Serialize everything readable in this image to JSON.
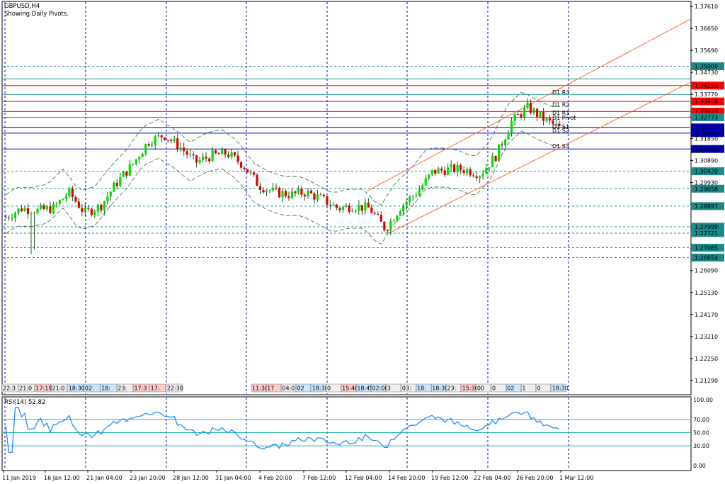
{
  "header": {
    "symbol": "GBPUSD,H4",
    "subtitle": "Showing Daily Pivots."
  },
  "rsi_panel": {
    "label": "RSI(14) 52.82",
    "levels": [
      "100.00",
      "70.00",
      "50.00",
      "30.00",
      "0.00"
    ]
  },
  "colors": {
    "bull_candle": "#00e000",
    "bear_candle": "#e00000",
    "wick": "#1a5a1a",
    "grid": "#0000cc",
    "rsi_line": "#1e90ff",
    "pivot_red": "#ff0000",
    "pivot_blue": "#0000b0",
    "hline_teal": "#1f8f8f",
    "channel": "#ff6a3a",
    "axis_label_bg": "#1a8a8a"
  },
  "chart_data": {
    "type": "candlestick",
    "symbol": "GBPUSD",
    "timeframe": "H4",
    "ylim": [
      1.2062,
      1.3797
    ],
    "y_ticks": [
      "1.37610",
      "1.36650",
      "1.35690",
      "1.34730",
      "1.33770",
      "1.32810",
      "1.31850",
      "1.30890",
      "1.29930",
      "1.28970",
      "1.28010",
      "1.27050",
      "1.26090",
      "1.25130",
      "1.24170",
      "1.23210",
      "1.22250",
      "1.21290"
    ],
    "x_ticks": [
      "11 Jan 2019",
      "16 Jan 12:00",
      "21 Jan 04:00",
      "23 Jan 20:00",
      "28 Jan 12:00",
      "31 Jan 04:00",
      "4 Feb 20:00",
      "7 Feb 12:00",
      "12 Feb 04:00",
      "14 Feb 20:00",
      "19 Feb 12:00",
      "22 Feb 04:00",
      "26 Feb 20:00",
      "1 Mar 12:00"
    ],
    "daily_pivots": [
      {
        "label": "D1 R3",
        "value": 1.34155
      },
      {
        "label": "D1 R2",
        "value": 1.33464
      },
      {
        "label": "D1 R1",
        "value": 1.33023
      },
      {
        "label": "D1 Pivot",
        "value": 1.32773
      },
      {
        "label": "D1 S1",
        "value": 1.32331
      },
      {
        "label": "D1 S2",
        "value": 1.32082
      },
      {
        "label": "D1 S3",
        "value": 1.31391
      }
    ],
    "price_labels": [
      {
        "text": "1.35000",
        "value": 1.35
      },
      {
        "text": "1.34155",
        "value": 1.34155
      },
      {
        "text": "1.33464",
        "value": 1.33464
      },
      {
        "text": "1.33023",
        "value": 1.33023
      },
      {
        "text": "1.32773",
        "value": 1.32773
      },
      {
        "text": "1.32331",
        "value": 1.32331
      },
      {
        "text": "1.32082",
        "value": 1.32082
      },
      {
        "text": "1.31391",
        "value": 1.31391
      },
      {
        "text": "1.30420",
        "value": 1.3042
      },
      {
        "text": "1.29658",
        "value": 1.29658
      },
      {
        "text": "1.28897",
        "value": 1.28897
      },
      {
        "text": "1.27999",
        "value": 1.27999
      },
      {
        "text": "1.27721",
        "value": 1.27721
      },
      {
        "text": "1.27085",
        "value": 1.27085
      },
      {
        "text": "1.26654",
        "value": 1.26654
      }
    ],
    "event_labels_left": [
      "22:3",
      "21:0",
      "17:19",
      "21:0",
      "18:30",
      "02:",
      "18:",
      "23:",
      "17:3",
      "17:",
      "22:30"
    ],
    "event_labels_right": [
      "11:30",
      "17",
      "04:0",
      "02",
      "18:30",
      "0",
      "15:46",
      "18:45",
      "02:00",
      "3",
      "03:",
      "18:",
      "18:30",
      "23:",
      "15:30",
      "00",
      "0",
      "02",
      "1",
      "0",
      "18:30"
    ],
    "rsi": {
      "period": 14,
      "current": 52.82,
      "ylim": [
        0,
        100
      ],
      "levels": [
        30,
        50,
        70
      ]
    },
    "close_path": [
      [
        "11 Jan",
        1.284
      ],
      [
        "14 Jan",
        1.288
      ],
      [
        "15 Jan",
        1.287
      ],
      [
        "16 Jan",
        1.288
      ],
      [
        "17 Jan",
        1.295
      ],
      [
        "18 Jan",
        1.286
      ],
      [
        "21 Jan",
        1.289
      ],
      [
        "22 Jan",
        1.299
      ],
      [
        "23 Jan",
        1.307
      ],
      [
        "24 Jan",
        1.317
      ],
      [
        "25 Jan",
        1.32
      ],
      [
        "28 Jan",
        1.315
      ],
      [
        "29 Jan",
        1.308
      ],
      [
        "30 Jan",
        1.311
      ],
      [
        "31 Jan",
        1.312
      ],
      [
        "1 Feb",
        1.307
      ],
      [
        "4 Feb",
        1.298
      ],
      [
        "5 Feb",
        1.295
      ],
      [
        "6 Feb",
        1.294
      ],
      [
        "7 Feb",
        1.295
      ],
      [
        "8 Feb",
        1.292
      ],
      [
        "11 Feb",
        1.288
      ],
      [
        "12 Feb",
        1.289
      ],
      [
        "13 Feb",
        1.288
      ],
      [
        "14 Feb",
        1.279
      ],
      [
        "15 Feb",
        1.289
      ],
      [
        "18 Feb",
        1.295
      ],
      [
        "19 Feb",
        1.304
      ],
      [
        "20 Feb",
        1.305
      ],
      [
        "21 Feb",
        1.305
      ],
      [
        "22 Feb",
        1.303
      ],
      [
        "25 Feb",
        1.311
      ],
      [
        "26 Feb",
        1.326
      ],
      [
        "27 Feb",
        1.332
      ],
      [
        "28 Feb",
        1.327
      ],
      [
        "1 Mar",
        1.323
      ]
    ]
  }
}
